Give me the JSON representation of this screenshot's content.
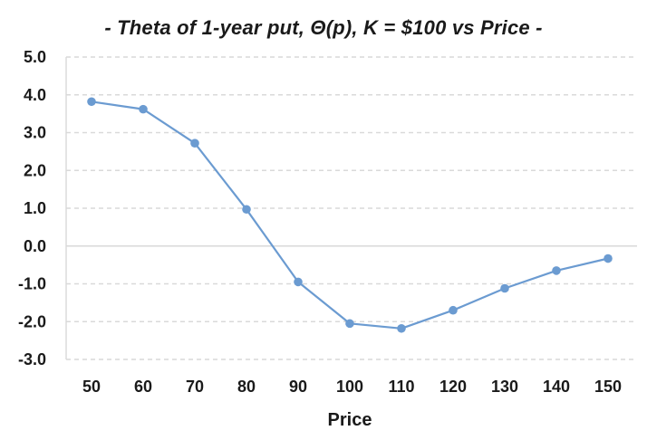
{
  "chart_data": {
    "type": "line",
    "title": "- Theta of 1-year put, Θ(p), K = $100 vs Price -",
    "xlabel": "Price",
    "ylabel": "",
    "x": [
      50,
      60,
      70,
      80,
      90,
      100,
      110,
      120,
      130,
      140,
      150
    ],
    "series": [
      {
        "values": [
          3.82,
          3.62,
          2.72,
          0.97,
          -0.95,
          -2.05,
          -2.18,
          -1.7,
          -1.12,
          -0.65,
          -0.33
        ]
      }
    ],
    "ylim": [
      -3.0,
      5.0
    ],
    "ytick_step": 1.0,
    "yticks": [
      "5.0",
      "4.0",
      "3.0",
      "2.0",
      "1.0",
      "0.0",
      "-1.0",
      "-2.0",
      "-3.0"
    ],
    "xticks": [
      "50",
      "60",
      "70",
      "80",
      "90",
      "100",
      "110",
      "120",
      "130",
      "140",
      "150"
    ],
    "grid": true,
    "legend": "none",
    "colors": {
      "series": "#6b9bd1",
      "grid": "#d9d9d9",
      "axis": "#d9d9d9"
    }
  }
}
